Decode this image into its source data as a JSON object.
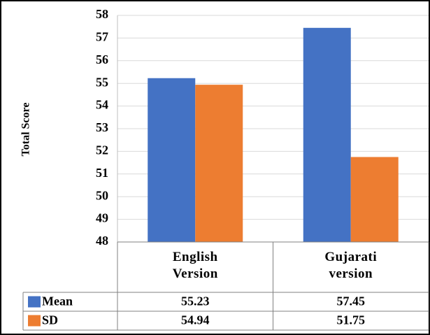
{
  "chart_data": {
    "type": "bar",
    "y_label": "Total Score",
    "categories": [
      "English Version",
      "Gujarati version"
    ],
    "series": [
      {
        "name": "Mean",
        "color": "#4472c4",
        "values": [
          55.23,
          57.45
        ]
      },
      {
        "name": "SD",
        "color": "#ed7d31",
        "values": [
          54.94,
          51.75
        ]
      }
    ],
    "ylim": [
      48,
      58
    ],
    "yticks": [
      48,
      49,
      50,
      51,
      52,
      53,
      54,
      55,
      56,
      57,
      58
    ],
    "grid": true,
    "data_table": true
  }
}
